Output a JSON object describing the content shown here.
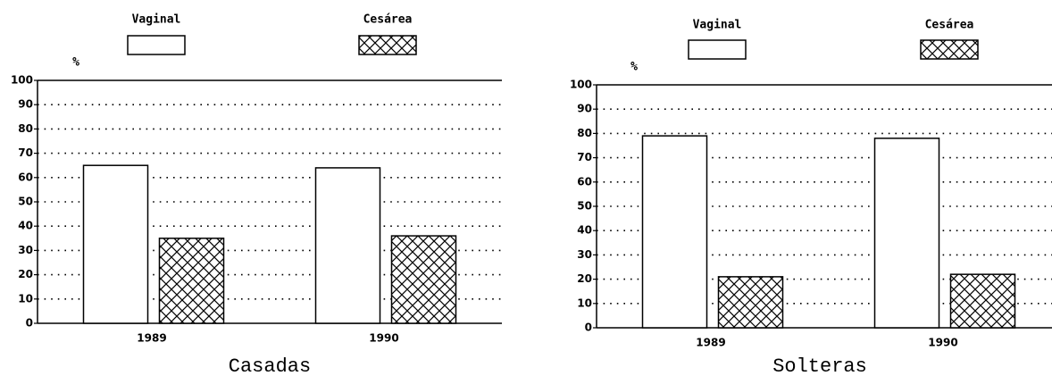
{
  "chart_data": [
    {
      "type": "bar",
      "title": "Casadas",
      "y_label": "%",
      "categories": [
        "1989",
        "1990"
      ],
      "series": [
        {
          "name": "Vaginal",
          "color": "#ffffff",
          "pattern": "none",
          "values": [
            65,
            64
          ]
        },
        {
          "name": "Cesárea",
          "color": "#ffffff",
          "pattern": "crosshatch",
          "values": [
            35,
            36
          ]
        }
      ],
      "ylim": [
        0,
        100
      ],
      "yticks": [
        0,
        10,
        20,
        30,
        40,
        50,
        60,
        70,
        80,
        90,
        100
      ],
      "grid": true,
      "legend": "top"
    },
    {
      "type": "bar",
      "title": "Solteras",
      "y_label": "%",
      "categories": [
        "1989",
        "1990"
      ],
      "series": [
        {
          "name": "Vaginal",
          "color": "#ffffff",
          "pattern": "none",
          "values": [
            79,
            78
          ]
        },
        {
          "name": "Cesárea",
          "color": "#ffffff",
          "pattern": "crosshatch",
          "values": [
            21,
            22
          ]
        }
      ],
      "ylim": [
        0,
        100
      ],
      "yticks": [
        0,
        10,
        20,
        30,
        40,
        50,
        60,
        70,
        80,
        90,
        100
      ],
      "grid": true,
      "legend": "top"
    }
  ]
}
